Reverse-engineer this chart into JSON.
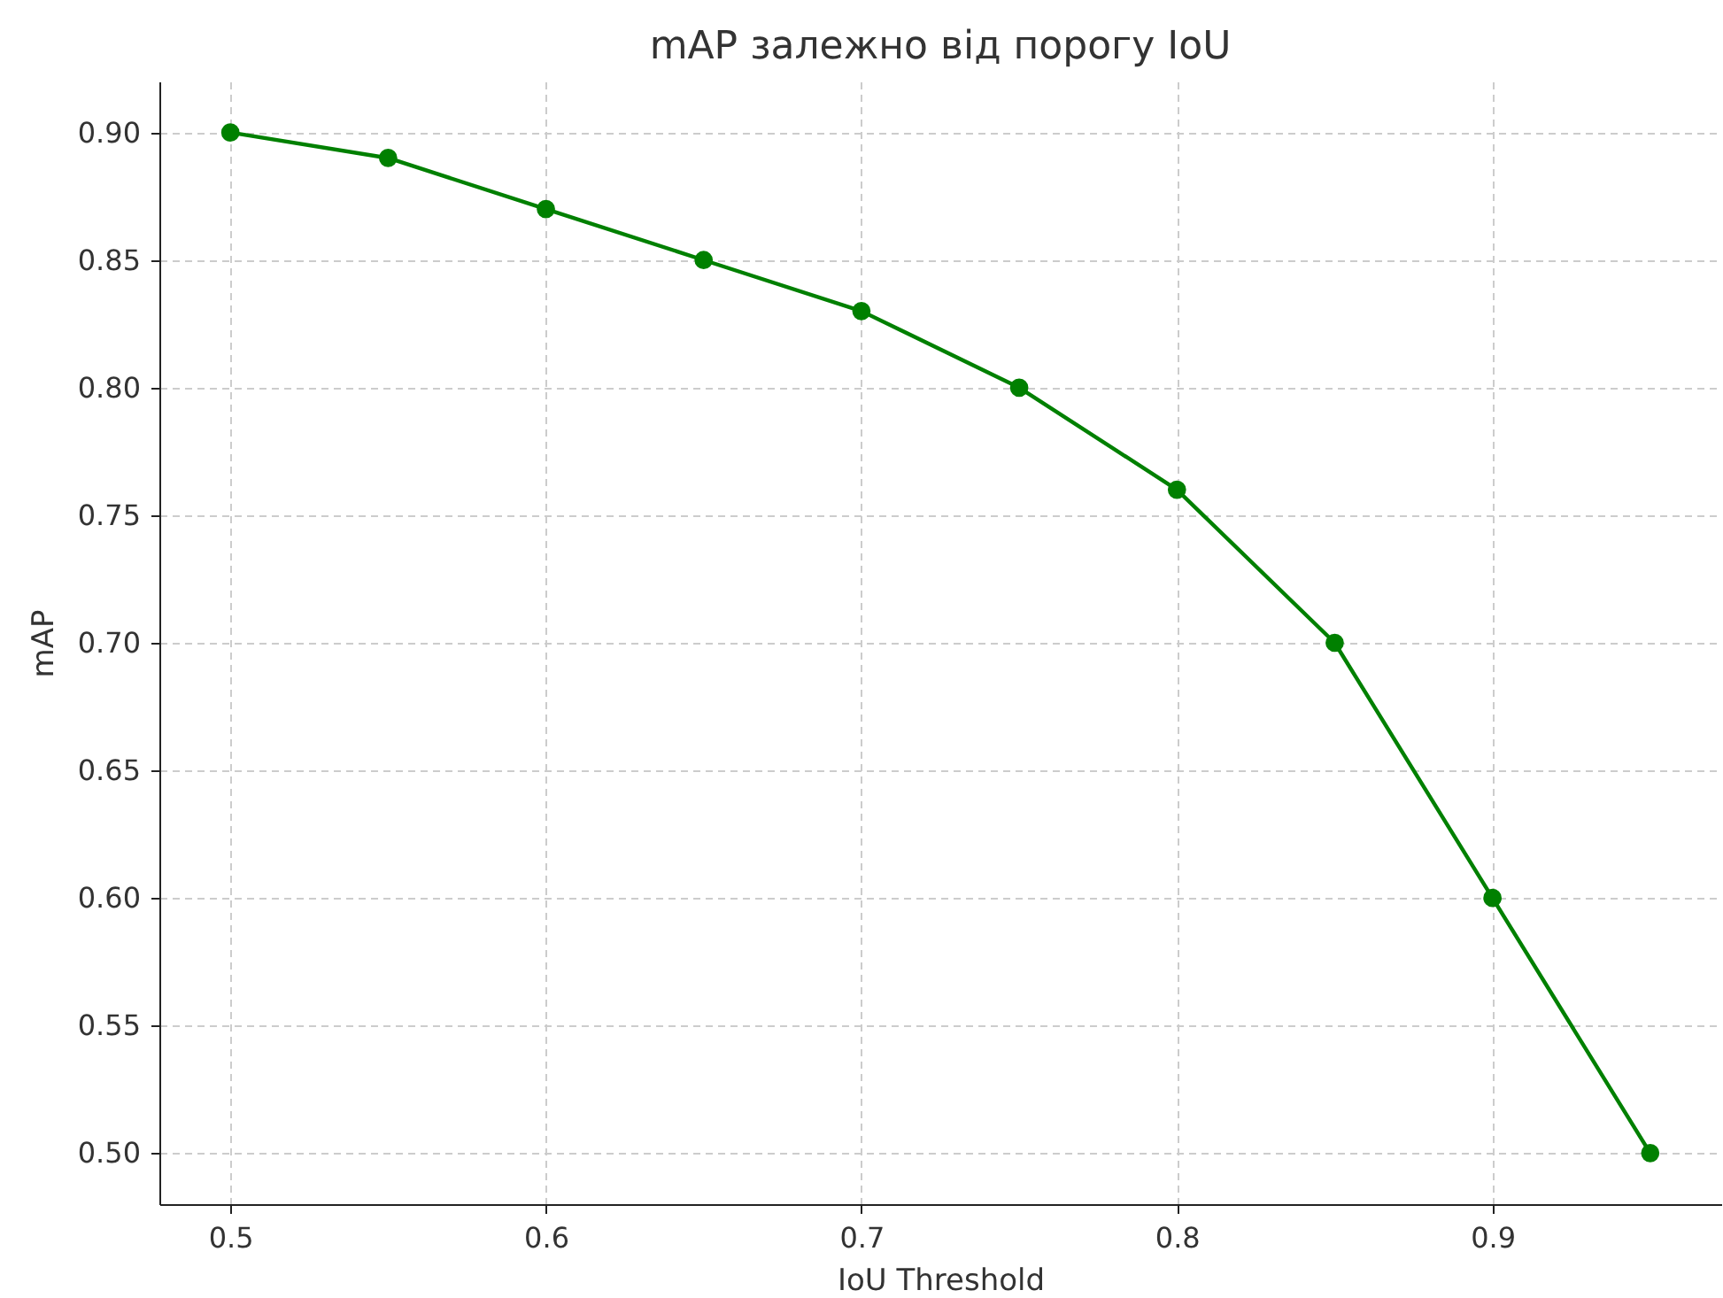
{
  "chart_data": {
    "type": "line",
    "title": "mAP залежно від порогу IoU",
    "xlabel": "IoU Threshold",
    "ylabel": "mAP",
    "x": [
      0.5,
      0.55,
      0.6,
      0.65,
      0.7,
      0.75,
      0.8,
      0.85,
      0.9,
      0.95
    ],
    "series": [
      {
        "color": "#008000",
        "values": [
          0.9,
          0.89,
          0.87,
          0.85,
          0.83,
          0.8,
          0.76,
          0.7,
          0.6,
          0.5
        ]
      }
    ],
    "xlim": [
      0.4775,
      0.9725
    ],
    "xticks": [
      0.5,
      0.6,
      0.7,
      0.8,
      0.9
    ],
    "ylim": [
      0.48,
      0.92
    ],
    "yticks": [
      {
        "value": 0.5,
        "label": "0.50"
      },
      {
        "value": 0.55,
        "label": "0.55"
      },
      {
        "value": 0.6,
        "label": "0.60"
      },
      {
        "value": 0.65,
        "label": "0.65"
      },
      {
        "value": 0.7,
        "label": "0.70"
      },
      {
        "value": 0.75,
        "label": "0.75"
      },
      {
        "value": 0.8,
        "label": "0.80"
      },
      {
        "value": 0.85,
        "label": "0.85"
      },
      {
        "value": 0.9,
        "label": "0.90"
      }
    ],
    "grid": true,
    "marker": "circle",
    "line_style": "solid"
  }
}
